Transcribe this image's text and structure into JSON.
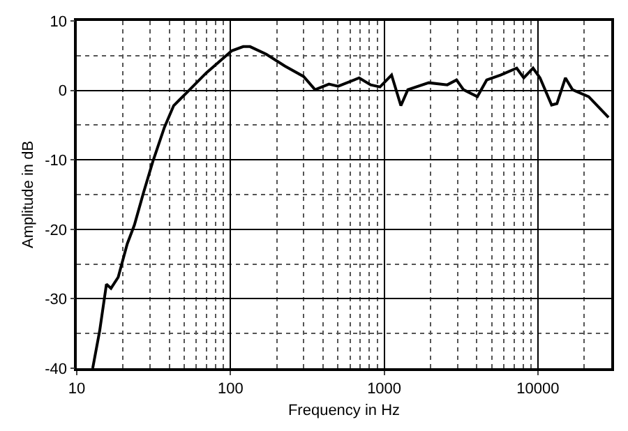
{
  "chart_data": {
    "type": "line",
    "xlabel": "Frequency in Hz",
    "ylabel": "Amplitude in dB",
    "log": "x",
    "grid": true,
    "marker": "none",
    "line_style": "solid",
    "x": [
      12.7,
      14.1,
      15.6,
      16.7,
      18.6,
      21.3,
      23.7,
      27.2,
      31.2,
      37.2,
      42.7,
      52.6,
      69.5,
      102,
      121,
      134,
      171,
      226,
      299,
      355,
      437,
      502,
      687,
      817,
      939,
      1117,
      1284,
      1425,
      1950,
      2572,
      2955,
      3280,
      4038,
      4643,
      5716,
      7280,
      8090,
      9300,
      10320,
      12280,
      13300,
      15100,
      16790,
      21400,
      28800
    ],
    "series": [
      {
        "color": "#000000",
        "values": [
          -40,
          -34.6,
          -27.9,
          -28.5,
          -26.9,
          -22.1,
          -19.4,
          -14.7,
          -10.3,
          -5.3,
          -2.2,
          -0.2,
          2.5,
          5.7,
          6.3,
          6.3,
          5.2,
          3.5,
          2.0,
          0.1,
          0.9,
          0.6,
          1.8,
          0.8,
          0.5,
          2.2,
          -2.2,
          0.1,
          1.1,
          0.8,
          1.5,
          0.1,
          -0.9,
          1.5,
          2.2,
          3.2,
          1.8,
          3.2,
          1.8,
          -2.1,
          -1.9,
          1.8,
          0.1,
          -0.9,
          -3.9
        ]
      }
    ],
    "xlim": [
      10,
      30000
    ],
    "xticks": [
      10,
      100,
      1000,
      10000
    ],
    "ylim": [
      -40,
      10
    ],
    "yticks": [
      -40,
      -30,
      -20,
      -10,
      0,
      10
    ]
  }
}
